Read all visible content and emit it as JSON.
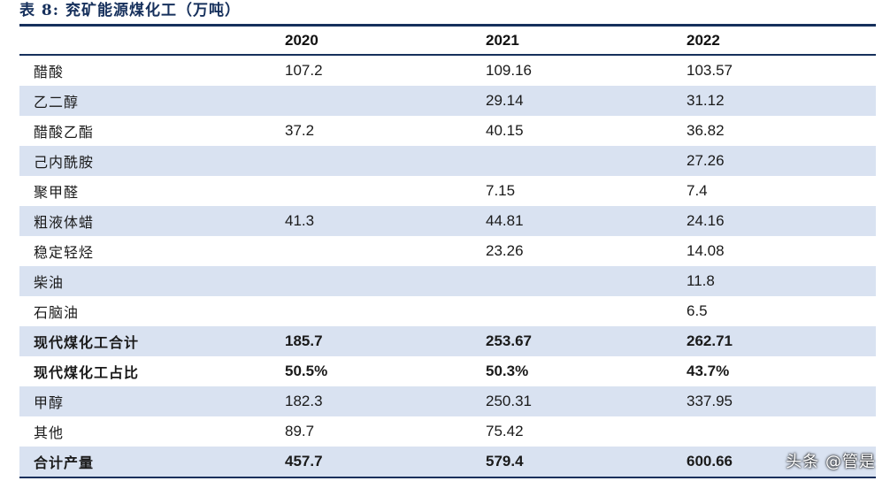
{
  "title": "表 8:  兖矿能源煤化工（万吨）",
  "table": {
    "headers": [
      "",
      "2020",
      "2021",
      "2022"
    ],
    "rows": [
      {
        "label": "醋酸",
        "values": [
          "107.2",
          "109.16",
          "103.57"
        ]
      },
      {
        "label": "乙二醇",
        "values": [
          "",
          "29.14",
          "31.12"
        ]
      },
      {
        "label": "醋酸乙酯",
        "values": [
          "37.2",
          "40.15",
          "36.82"
        ]
      },
      {
        "label": "己内酰胺",
        "values": [
          "",
          "",
          "27.26"
        ]
      },
      {
        "label": "聚甲醛",
        "values": [
          "",
          "7.15",
          "7.4"
        ]
      },
      {
        "label": "粗液体蜡",
        "values": [
          "41.3",
          "44.81",
          "24.16"
        ]
      },
      {
        "label": "稳定轻烃",
        "values": [
          "",
          "23.26",
          "14.08"
        ]
      },
      {
        "label": "柴油",
        "values": [
          "",
          "",
          "11.8"
        ]
      },
      {
        "label": "石脑油",
        "values": [
          "",
          "",
          "6.5"
        ]
      },
      {
        "label": "现代煤化工合计",
        "values": [
          "185.7",
          "253.67",
          "262.71"
        ]
      },
      {
        "label": "现代煤化工占比",
        "values": [
          "50.5%",
          "50.3%",
          "43.7%"
        ]
      },
      {
        "label": "甲醇",
        "values": [
          "182.3",
          "250.31",
          "337.95"
        ]
      },
      {
        "label": "其他",
        "values": [
          "89.7",
          "75.42",
          ""
        ]
      },
      {
        "label": "合计产量",
        "values": [
          "457.7",
          "579.4",
          "600.66"
        ]
      }
    ]
  },
  "watermark": "头条 @管是",
  "colors": {
    "header_rule": "#16305c",
    "row_shade": "#d9e2f1"
  }
}
